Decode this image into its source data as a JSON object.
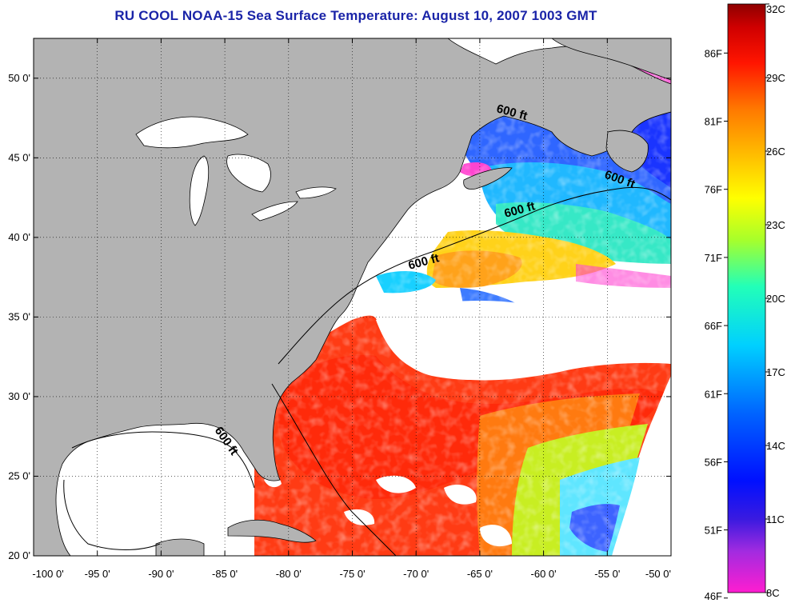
{
  "title": "RU COOL  NOAA-15  Sea Surface Temperature:  August 10, 2007 1003 GMT",
  "map": {
    "lon_range": [
      -100,
      -50
    ],
    "lat_range": [
      20,
      52.5
    ],
    "lat_ticks": [
      {
        "value": 20,
        "label": "20 0'"
      },
      {
        "value": 25,
        "label": "25 0'"
      },
      {
        "value": 30,
        "label": "30 0'"
      },
      {
        "value": 35,
        "label": "35 0'"
      },
      {
        "value": 40,
        "label": "40 0'"
      },
      {
        "value": 45,
        "label": "45 0'"
      },
      {
        "value": 50,
        "label": "50 0'"
      }
    ],
    "lon_ticks": [
      {
        "value": -100,
        "label": "-100 0'"
      },
      {
        "value": -95,
        "label": "-95 0'"
      },
      {
        "value": -90,
        "label": "-90 0'"
      },
      {
        "value": -85,
        "label": "-85 0'"
      },
      {
        "value": -80,
        "label": "-80 0'"
      },
      {
        "value": -75,
        "label": "-75 0'"
      },
      {
        "value": -70,
        "label": "-70 0'"
      },
      {
        "value": -65,
        "label": "-65 0'"
      },
      {
        "value": -60,
        "label": "-60 0'"
      },
      {
        "value": -55,
        "label": "-55 0'"
      },
      {
        "value": -50,
        "label": "-50 0'"
      }
    ],
    "contour_labels": [
      "600 ft",
      "600 ft",
      "600 ft",
      "600 ft",
      "600 ft"
    ],
    "land_color": "#b3b3b3"
  },
  "colorbar": {
    "range_c": [
      8,
      32
    ],
    "celsius_labels": [
      {
        "value": 32,
        "label": "32C"
      },
      {
        "value": 29,
        "label": "29C"
      },
      {
        "value": 26,
        "label": "26C"
      },
      {
        "value": 23,
        "label": "23C"
      },
      {
        "value": 20,
        "label": "20C"
      },
      {
        "value": 17,
        "label": "17C"
      },
      {
        "value": 14,
        "label": "14C"
      },
      {
        "value": 11,
        "label": "11C"
      },
      {
        "value": 8,
        "label": "8C"
      }
    ],
    "fahrenheit_labels": [
      {
        "value": 86,
        "label": "86F"
      },
      {
        "value": 81,
        "label": "81F"
      },
      {
        "value": 76,
        "label": "76F"
      },
      {
        "value": 71,
        "label": "71F"
      },
      {
        "value": 66,
        "label": "66F"
      },
      {
        "value": 61,
        "label": "61F"
      },
      {
        "value": 56,
        "label": "56F"
      },
      {
        "value": 51,
        "label": "51F"
      },
      {
        "value": 46,
        "label": "46F"
      }
    ]
  }
}
